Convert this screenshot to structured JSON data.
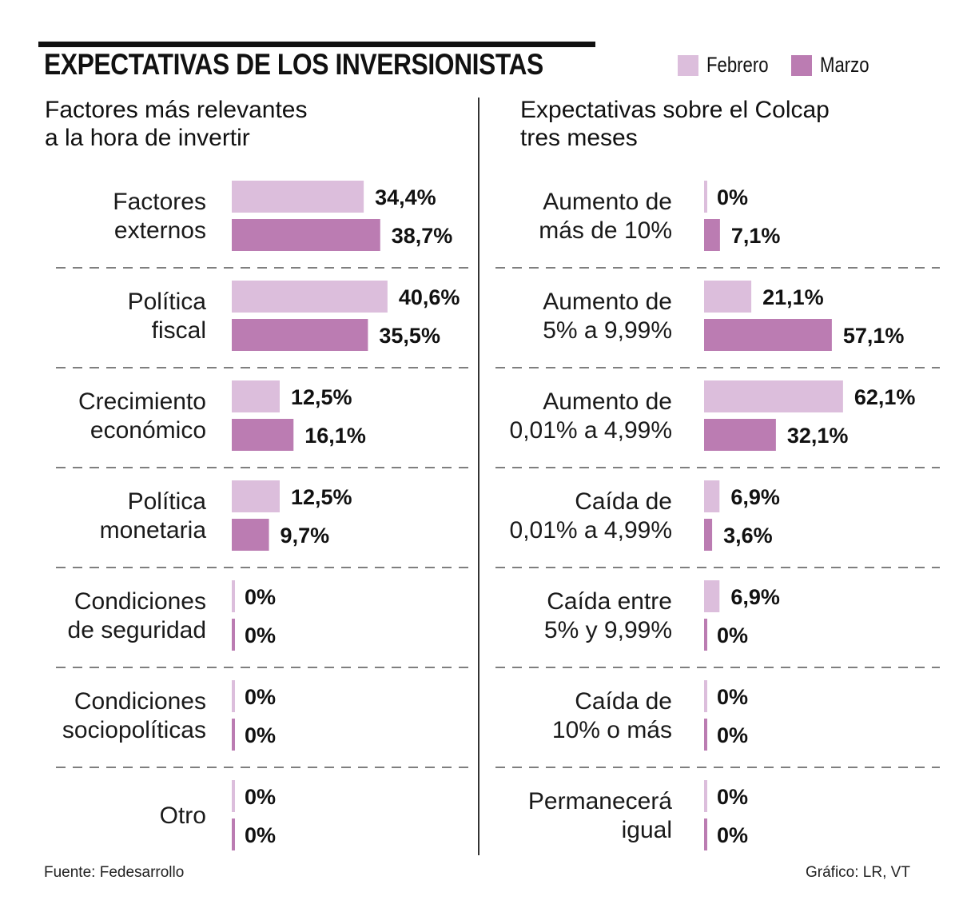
{
  "header": {
    "title": "EXPECTATIVAS DE LOS INVERSIONISTAS",
    "legend": [
      {
        "label": "Febrero",
        "color": "#dcbedc"
      },
      {
        "label": "Marzo",
        "color": "#bb7cb2"
      }
    ]
  },
  "chart_data": [
    {
      "type": "bar",
      "orientation": "horizontal",
      "title": "Factores más relevantes a la hora de invertir",
      "title_lines": [
        "Factores más relevantes",
        "a la hora de invertir"
      ],
      "categories": [
        [
          "Factores",
          "externos"
        ],
        [
          "Política",
          "fiscal"
        ],
        [
          "Crecimiento",
          "económico"
        ],
        [
          "Política",
          "monetaria"
        ],
        [
          "Condiciones",
          "de seguridad"
        ],
        [
          "Condiciones",
          "sociopolíticas"
        ],
        [
          "Otro"
        ]
      ],
      "series": [
        {
          "name": "Febrero",
          "values": [
            34.4,
            40.6,
            12.5,
            12.5,
            0,
            0,
            0
          ],
          "labels": [
            "34,4%",
            "40,6%",
            "12,5%",
            "12,5%",
            "0%",
            "0%",
            "0%"
          ]
        },
        {
          "name": "Marzo",
          "values": [
            38.7,
            35.5,
            16.1,
            9.7,
            0,
            0,
            0
          ],
          "labels": [
            "38,7%",
            "35,5%",
            "16,1%",
            "9,7%",
            "0%",
            "0%",
            "0%"
          ]
        }
      ],
      "unit": "%",
      "grid": false,
      "legend": "top-right"
    },
    {
      "type": "bar",
      "orientation": "horizontal",
      "title": "Expectativas sobre el Colcap tres meses",
      "title_lines": [
        "Expectativas sobre el Colcap",
        "tres meses"
      ],
      "categories": [
        [
          "Aumento de",
          "más de 10%"
        ],
        [
          "Aumento de",
          "5% a 9,99%"
        ],
        [
          "Aumento de",
          "0,01% a 4,99%"
        ],
        [
          "Caída de",
          "0,01% a 4,99%"
        ],
        [
          "Caída entre",
          "5% y 9,99%"
        ],
        [
          "Caída de",
          "10% o más"
        ],
        [
          "Permanecerá",
          "igual"
        ]
      ],
      "series": [
        {
          "name": "Febrero",
          "values": [
            0,
            21.1,
            62.1,
            6.9,
            6.9,
            0,
            0
          ],
          "labels": [
            "0%",
            "21,1%",
            "62,1%",
            "6,9%",
            "6,9%",
            "0%",
            "0%"
          ]
        },
        {
          "name": "Marzo",
          "values": [
            7.1,
            57.1,
            32.1,
            3.6,
            0,
            0,
            0
          ],
          "labels": [
            "7,1%",
            "57,1%",
            "32,1%",
            "3,6%",
            "0%",
            "0%",
            "0%"
          ]
        }
      ],
      "unit": "%",
      "grid": false,
      "legend": "top-right"
    }
  ],
  "footer": {
    "source": "Fuente: Fedesarrollo",
    "credit": "Gráfico: LR, VT"
  }
}
